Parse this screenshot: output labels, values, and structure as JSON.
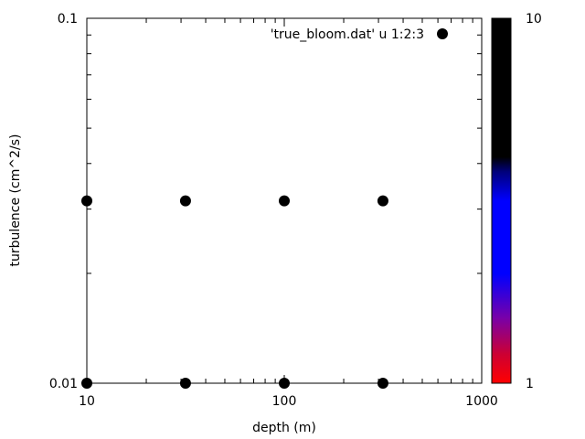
{
  "chart_data": {
    "type": "scatter",
    "xlabel": "depth (m)",
    "ylabel": "turbulence (cm^2/s)",
    "x_scale": "log",
    "y_scale": "log",
    "xlim": [
      10,
      1000
    ],
    "ylim": [
      0.01,
      0.1
    ],
    "x_ticks": [
      {
        "value": 10,
        "label": "10"
      },
      {
        "value": 100,
        "label": "100"
      },
      {
        "value": 1000,
        "label": "1000"
      }
    ],
    "y_ticks": [
      {
        "value": 0.01,
        "label": "0.01"
      },
      {
        "value": 0.1,
        "label": "0.1"
      }
    ],
    "series": [
      {
        "name": "'true_bloom.dat' u 1:2:3",
        "points": [
          {
            "x": 10,
            "y": 0.01,
            "c": 10
          },
          {
            "x": 31.6,
            "y": 0.01,
            "c": 10
          },
          {
            "x": 100,
            "y": 0.01,
            "c": 10
          },
          {
            "x": 316,
            "y": 0.01,
            "c": 10
          },
          {
            "x": 10,
            "y": 0.0316,
            "c": 10
          },
          {
            "x": 31.6,
            "y": 0.0316,
            "c": 10
          },
          {
            "x": 100,
            "y": 0.0316,
            "c": 10
          },
          {
            "x": 316,
            "y": 0.0316,
            "c": 10
          }
        ]
      }
    ],
    "colorbar": {
      "min_label": "1",
      "max_label": "10",
      "range": [
        1,
        10
      ],
      "stops": [
        {
          "pos": 0.0,
          "color": "#ff0000"
        },
        {
          "pos": 0.08,
          "color": "#cc0033"
        },
        {
          "pos": 0.18,
          "color": "#7700aa"
        },
        {
          "pos": 0.3,
          "color": "#0000ff"
        },
        {
          "pos": 0.5,
          "color": "#0000ff"
        },
        {
          "pos": 0.58,
          "color": "#00007a"
        },
        {
          "pos": 0.62,
          "color": "#000000"
        },
        {
          "pos": 1.0,
          "color": "#000000"
        }
      ]
    },
    "grid": false,
    "legend_position": "top-right"
  }
}
